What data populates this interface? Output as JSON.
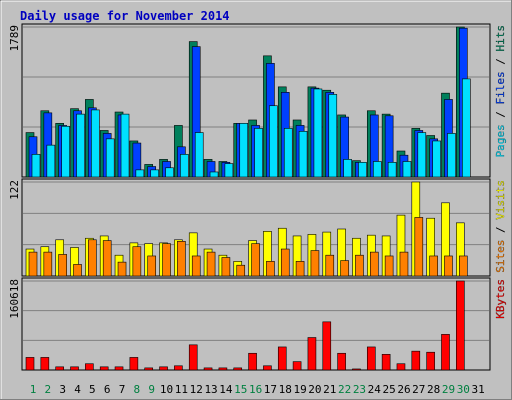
{
  "chart_data": [
    {
      "type": "bar",
      "title": "Daily usage for November 2014",
      "categories": [
        "1",
        "2",
        "3",
        "4",
        "5",
        "6",
        "7",
        "8",
        "9",
        "10",
        "11",
        "12",
        "13",
        "14",
        "15",
        "16",
        "17",
        "18",
        "19",
        "20",
        "21",
        "22",
        "23",
        "24",
        "25",
        "26",
        "27",
        "28",
        "29",
        "30",
        "31"
      ],
      "category_colors": [
        "#008040",
        "#008040",
        "#000000",
        "#000000",
        "#000000",
        "#000000",
        "#000000",
        "#008040",
        "#008040",
        "#000000",
        "#000000",
        "#000000",
        "#000000",
        "#000000",
        "#008040",
        "#008040",
        "#000000",
        "#000000",
        "#000000",
        "#000000",
        "#000000",
        "#008040",
        "#008040",
        "#000000",
        "#000000",
        "#000000",
        "#000000",
        "#000000",
        "#008040",
        "#008040",
        "#000000"
      ],
      "legend_separator": " / ",
      "series": [
        {
          "name": "Pages",
          "color": "#00E0FF",
          "values": [
            270,
            380,
            605,
            750,
            800,
            455,
            750,
            85,
            85,
            110,
            270,
            530,
            60,
            160,
            640,
            580,
            850,
            580,
            545,
            1050,
            985,
            210,
            175,
            185,
            175,
            185,
            530,
            430,
            520,
            1170,
            0
          ]
        },
        {
          "name": "Files",
          "color": "#0040FF",
          "values": [
            480,
            765,
            615,
            790,
            825,
            520,
            740,
            405,
            125,
            185,
            360,
            1555,
            185,
            175,
            640,
            615,
            1355,
            1010,
            615,
            1060,
            1010,
            715,
            175,
            740,
            730,
            260,
            555,
            455,
            925,
            1775,
            0
          ]
        },
        {
          "name": "Hits",
          "color": "#00805C",
          "values": [
            530,
            790,
            640,
            815,
            925,
            555,
            775,
            430,
            150,
            210,
            615,
            1615,
            210,
            185,
            640,
            680,
            1445,
            1075,
            680,
            1075,
            1035,
            740,
            195,
            790,
            750,
            310,
            580,
            495,
            1000,
            1789,
            0
          ]
        }
      ],
      "ylim": [
        0,
        1789
      ],
      "yticks": [
        1789
      ]
    },
    {
      "type": "bar",
      "legend_separator": " / ",
      "series": [
        {
          "name": "Sites",
          "color": "#FF8000",
          "values": [
            31,
            31,
            28,
            15,
            47,
            46,
            18,
            38,
            26,
            42,
            45,
            26,
            31,
            24,
            14,
            42,
            19,
            35,
            19,
            33,
            27,
            20,
            27,
            31,
            26,
            31,
            76,
            26,
            26,
            26,
            0
          ]
        },
        {
          "name": "Visits",
          "color": "#FFFF00",
          "values": [
            35,
            38,
            47,
            37,
            49,
            52,
            27,
            43,
            42,
            43,
            47,
            56,
            35,
            27,
            19,
            46,
            58,
            62,
            52,
            54,
            57,
            61,
            49,
            53,
            52,
            79,
            122,
            75,
            95,
            69,
            0
          ]
        }
      ],
      "ylim": [
        0,
        122
      ],
      "yticks": [
        122
      ]
    },
    {
      "type": "bar",
      "series": [
        {
          "name": "KBytes",
          "color": "#FF0000",
          "values": [
            22700,
            22700,
            5700,
            5700,
            11300,
            5700,
            5700,
            22700,
            3800,
            5700,
            7600,
            45400,
            3800,
            3800,
            3800,
            30200,
            7600,
            41600,
            15100,
            58600,
            86900,
            30200,
            1900,
            41600,
            28300,
            11300,
            34000,
            32100,
            64300,
            160618,
            0
          ]
        }
      ],
      "ylim": [
        0,
        160618
      ],
      "yticks": [
        160618
      ]
    }
  ]
}
